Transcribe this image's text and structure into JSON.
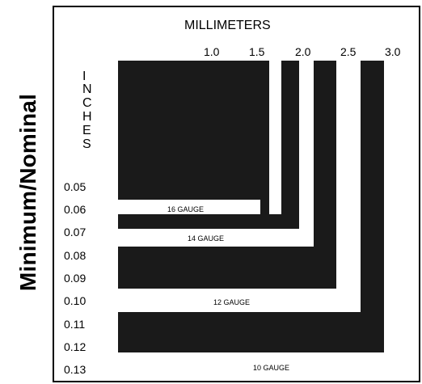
{
  "side_title": "Minimum/Nominal",
  "millimeters": {
    "title": "MILLIMETERS",
    "ticks": [
      "1.0",
      "1.5",
      "2.0",
      "2.5",
      "3.0"
    ]
  },
  "inches": {
    "label_letters": [
      "I",
      "N",
      "C",
      "H",
      "E",
      "S"
    ],
    "ticks": [
      "0.05",
      "0.06",
      "0.07",
      "0.08",
      "0.09",
      "0.10",
      "0.11",
      "0.12",
      "0.13"
    ]
  },
  "gauges": [
    {
      "label": "16 GAUGE",
      "mm": 1.5,
      "inches": 0.06
    },
    {
      "label": "14 GAUGE",
      "mm": 2.0,
      "inches": 0.07
    },
    {
      "label": "12 GAUGE",
      "mm": 2.5,
      "inches": 0.1
    },
    {
      "label": "10 GAUGE",
      "mm": 3.0,
      "inches": 0.13
    }
  ],
  "colors": {
    "block": "#1a1a1a",
    "background": "#ffffff",
    "text": "#000000"
  }
}
